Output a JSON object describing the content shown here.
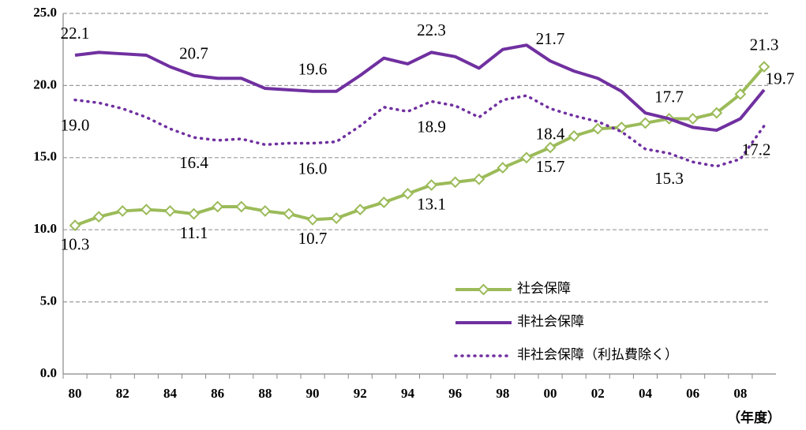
{
  "chart_data": {
    "type": "line",
    "x_label": "（年度）",
    "categories": [
      "80",
      null,
      "82",
      null,
      "84",
      null,
      "86",
      null,
      "88",
      null,
      "90",
      null,
      "92",
      null,
      "94",
      null,
      "96",
      null,
      "98",
      null,
      "00",
      null,
      "02",
      null,
      "04",
      null,
      "06",
      null,
      "08",
      null
    ],
    "ylim": [
      0,
      25
    ],
    "yticks": [
      {
        "value": 0,
        "label": "0.0"
      },
      {
        "value": 5,
        "label": "5.0"
      },
      {
        "value": 10,
        "label": "10.0"
      },
      {
        "value": 15,
        "label": "15.0"
      },
      {
        "value": 20,
        "label": "20.0"
      },
      {
        "value": 25,
        "label": "25.0"
      }
    ],
    "grid": true,
    "series": [
      {
        "name": "社会保障",
        "color": "#9bbb59",
        "style": "solid-marker",
        "values": [
          10.3,
          10.9,
          11.3,
          11.4,
          11.3,
          11.1,
          11.6,
          11.6,
          11.3,
          11.1,
          10.7,
          10.8,
          11.4,
          11.9,
          12.5,
          13.1,
          13.3,
          13.5,
          14.3,
          15.0,
          15.7,
          16.5,
          17.0,
          17.1,
          17.4,
          17.7,
          17.7,
          18.1,
          19.4,
          21.3
        ],
        "value_labels": [
          "10.3",
          null,
          null,
          null,
          null,
          "11.1",
          null,
          null,
          null,
          null,
          "10.7",
          null,
          null,
          null,
          null,
          "13.1",
          null,
          null,
          null,
          null,
          "15.7",
          null,
          null,
          null,
          null,
          "17.7",
          null,
          null,
          null,
          "21.3"
        ]
      },
      {
        "name": "非社会保障",
        "color": "#7030a0",
        "style": "solid",
        "values": [
          22.1,
          22.3,
          22.2,
          22.1,
          21.3,
          20.7,
          20.5,
          20.5,
          19.8,
          19.7,
          19.6,
          19.6,
          20.7,
          21.9,
          21.5,
          22.3,
          22.0,
          21.2,
          22.5,
          22.8,
          21.7,
          21.0,
          20.5,
          19.6,
          18.1,
          17.7,
          17.1,
          16.9,
          17.7,
          19.7
        ],
        "value_labels": [
          "22.1",
          null,
          null,
          null,
          null,
          "20.7",
          null,
          null,
          null,
          null,
          "19.6",
          null,
          null,
          null,
          null,
          "22.3",
          null,
          null,
          null,
          null,
          "21.7",
          null,
          null,
          null,
          null,
          null,
          null,
          null,
          null,
          "19.7"
        ]
      },
      {
        "name": "非社会保障（利払費除く）",
        "color": "#7030a0",
        "style": "dotted",
        "values": [
          19.0,
          18.8,
          18.4,
          17.8,
          17.0,
          16.4,
          16.2,
          16.3,
          15.9,
          16.0,
          16.0,
          16.1,
          17.2,
          18.5,
          18.2,
          18.9,
          18.6,
          17.8,
          19.0,
          19.3,
          18.4,
          17.9,
          17.5,
          16.8,
          15.6,
          15.3,
          14.7,
          14.4,
          14.9,
          17.2
        ],
        "value_labels": [
          "19.0",
          null,
          null,
          null,
          null,
          "16.4",
          null,
          null,
          null,
          null,
          "16.0",
          null,
          null,
          null,
          null,
          "18.9",
          null,
          null,
          null,
          null,
          "18.4",
          null,
          null,
          null,
          null,
          "15.3",
          null,
          null,
          null,
          "17.2"
        ]
      }
    ]
  }
}
